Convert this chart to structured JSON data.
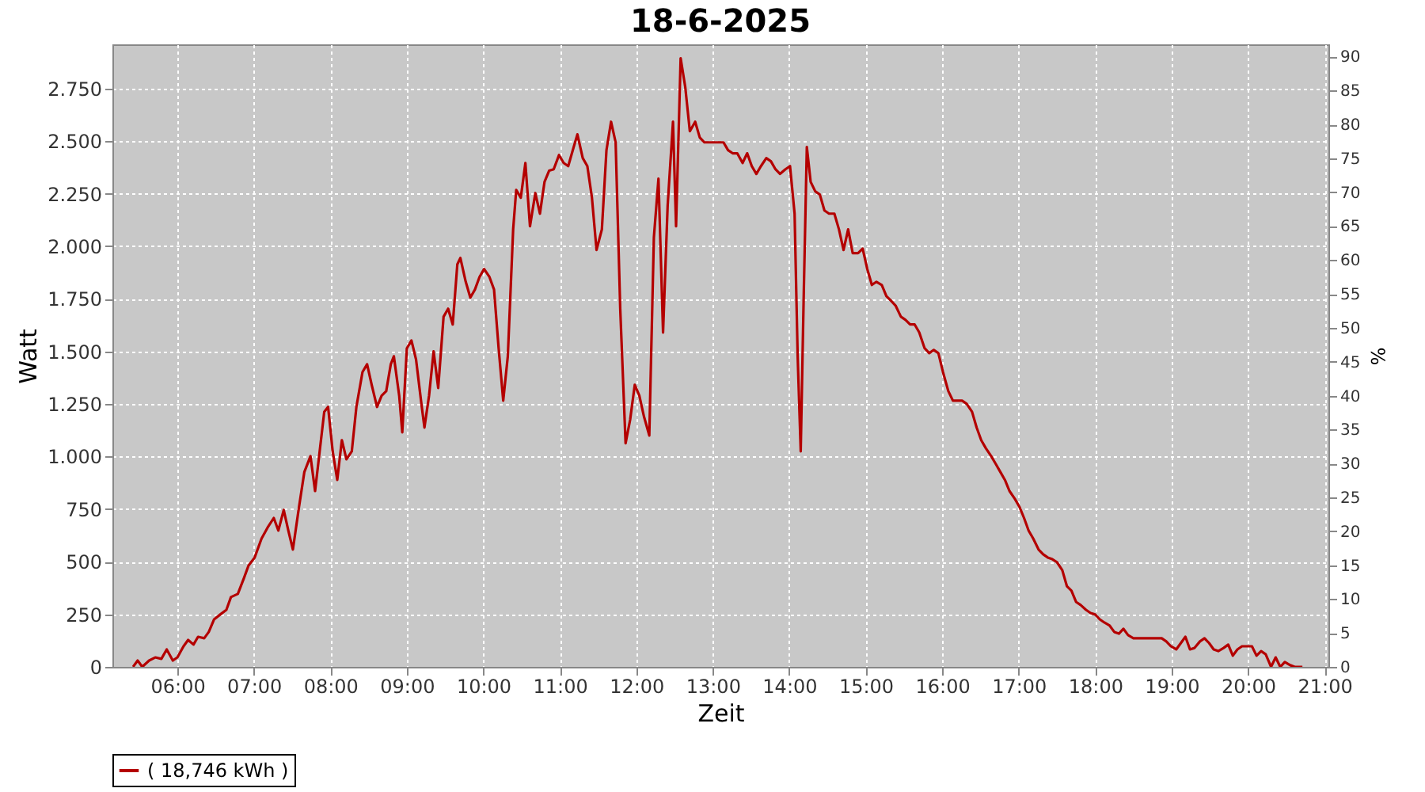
{
  "chart_data": {
    "type": "line",
    "title": "18-6-2025",
    "xlabel": "Zeit",
    "ylabel": "Watt",
    "y2label": "%",
    "xlim": [
      5.15,
      21.05
    ],
    "xticks": [
      {
        "value": 6,
        "label": "06:00"
      },
      {
        "value": 7,
        "label": "07:00"
      },
      {
        "value": 8,
        "label": "08:00"
      },
      {
        "value": 9,
        "label": "09:00"
      },
      {
        "value": 10,
        "label": "10:00"
      },
      {
        "value": 11,
        "label": "11:00"
      },
      {
        "value": 12,
        "label": "12:00"
      },
      {
        "value": 13,
        "label": "13:00"
      },
      {
        "value": 14,
        "label": "14:00"
      },
      {
        "value": 15,
        "label": "15:00"
      },
      {
        "value": 16,
        "label": "16:00"
      },
      {
        "value": 17,
        "label": "17:00"
      },
      {
        "value": 18,
        "label": "18:00"
      },
      {
        "value": 19,
        "label": "19:00"
      },
      {
        "value": 20,
        "label": "20:00"
      },
      {
        "value": 21,
        "label": "21:00"
      }
    ],
    "ylim": [
      0,
      2960
    ],
    "yticks": [
      0,
      250,
      500,
      750,
      {
        "value": 1000,
        "label": "1.000"
      },
      {
        "value": 1250,
        "label": "1.250"
      },
      {
        "value": 1500,
        "label": "1.500"
      },
      {
        "value": 1750,
        "label": "1.750"
      },
      {
        "value": 2000,
        "label": "2.000"
      },
      {
        "value": 2250,
        "label": "2.250"
      },
      {
        "value": 2500,
        "label": "2.500"
      },
      {
        "value": 2750,
        "label": "2.750"
      }
    ],
    "y2lim": [
      0,
      91.8
    ],
    "y2ticks": [
      0,
      5,
      10,
      15,
      20,
      25,
      30,
      35,
      40,
      45,
      50,
      55,
      60,
      65,
      70,
      75,
      80,
      85,
      90
    ],
    "grid": true,
    "legend": "bottom",
    "x": [
      5.42,
      5.48,
      5.54,
      5.63,
      5.71,
      5.79,
      5.86,
      5.94,
      6.0,
      6.08,
      6.14,
      6.21,
      6.27,
      6.35,
      6.41,
      6.48,
      6.56,
      6.64,
      6.7,
      6.79,
      6.87,
      6.93,
      7.01,
      7.1,
      7.18,
      7.26,
      7.32,
      7.39,
      7.45,
      7.51,
      7.59,
      7.66,
      7.74,
      7.8,
      7.86,
      7.92,
      7.97,
      8.03,
      8.09,
      8.15,
      8.21,
      8.28,
      8.34,
      8.42,
      8.48,
      8.54,
      8.61,
      8.67,
      8.73,
      8.79,
      8.83,
      8.9,
      8.94,
      9.0,
      9.06,
      9.12,
      9.19,
      9.23,
      9.29,
      9.35,
      9.41,
      9.48,
      9.54,
      9.6,
      9.66,
      9.7,
      9.77,
      9.83,
      9.89,
      9.95,
      10.01,
      10.08,
      10.14,
      10.2,
      10.26,
      10.32,
      10.39,
      10.43,
      10.49,
      10.55,
      10.61,
      10.68,
      10.74,
      10.8,
      10.86,
      10.92,
      10.99,
      11.05,
      11.11,
      11.17,
      11.23,
      11.3,
      11.36,
      11.42,
      11.48,
      11.55,
      11.61,
      11.67,
      11.73,
      11.79,
      11.86,
      11.92,
      11.98,
      12.04,
      12.1,
      12.17,
      12.23,
      12.29,
      12.35,
      12.41,
      12.48,
      12.52,
      12.58,
      12.64,
      12.7,
      12.77,
      12.83,
      12.89,
      12.95,
      13.01,
      13.08,
      13.14,
      13.2,
      13.26,
      13.32,
      13.39,
      13.45,
      13.51,
      13.57,
      13.63,
      13.7,
      13.76,
      13.82,
      13.88,
      13.95,
      14.01,
      14.07,
      14.11,
      14.15,
      14.19,
      14.23,
      14.28,
      14.34,
      14.4,
      14.46,
      14.52,
      14.59,
      14.65,
      14.71,
      14.77,
      14.83,
      14.9,
      14.96,
      15.02,
      15.08,
      15.14,
      15.21,
      15.27,
      15.33,
      15.39,
      15.46,
      15.52,
      15.58,
      15.64,
      15.7,
      15.77,
      15.83,
      15.89,
      15.95,
      16.01,
      16.08,
      16.14,
      16.2,
      16.26,
      16.32,
      16.39,
      16.45,
      16.51,
      16.57,
      16.64,
      16.7,
      16.76,
      16.82,
      16.88,
      16.95,
      17.01,
      17.07,
      17.13,
      17.19,
      17.26,
      17.32,
      17.38,
      17.44,
      17.5,
      17.57,
      17.63,
      17.69,
      17.75,
      17.81,
      17.88,
      17.94,
      18.0,
      18.06,
      18.12,
      18.19,
      18.25,
      18.31,
      18.37,
      18.43,
      18.5,
      18.56,
      18.62,
      18.68,
      18.74,
      18.81,
      18.87,
      18.93,
      18.99,
      19.06,
      19.12,
      19.18,
      19.24,
      19.3,
      19.37,
      19.43,
      19.49,
      19.55,
      19.61,
      19.68,
      19.74,
      19.8,
      19.86,
      19.92,
      19.99,
      20.05,
      20.11,
      20.17,
      20.23,
      20.3,
      20.36,
      20.42,
      20.48,
      20.55,
      20.61,
      20.71
    ],
    "series": [
      {
        "name": "( 18,746 kWh )",
        "color": "#b40000",
        "values": [
          0,
          30,
          0,
          30,
          45,
          38,
          83,
          30,
          45,
          98,
          128,
          106,
          143,
          136,
          166,
          226,
          249,
          271,
          332,
          347,
          422,
          482,
          520,
          610,
          663,
          708,
          648,
          746,
          648,
          558,
          761,
          927,
          1002,
          836,
          1025,
          1213,
          1236,
          1025,
          889,
          1078,
          987,
          1025,
          1236,
          1402,
          1439,
          1341,
          1236,
          1289,
          1311,
          1439,
          1477,
          1289,
          1115,
          1515,
          1552,
          1462,
          1251,
          1138,
          1289,
          1500,
          1326,
          1665,
          1703,
          1628,
          1914,
          1944,
          1831,
          1756,
          1794,
          1854,
          1892,
          1854,
          1794,
          1515,
          1266,
          1477,
          2080,
          2268,
          2231,
          2396,
          2095,
          2253,
          2155,
          2306,
          2359,
          2366,
          2434,
          2396,
          2381,
          2457,
          2532,
          2419,
          2381,
          2231,
          1982,
          2080,
          2457,
          2592,
          2494,
          1703,
          1063,
          1176,
          1341,
          1289,
          1191,
          1100,
          2042,
          2321,
          1590,
          2193,
          2592,
          2095,
          2894,
          2758,
          2547,
          2592,
          2517,
          2494,
          2494,
          2494,
          2494,
          2494,
          2457,
          2442,
          2442,
          2396,
          2442,
          2381,
          2344,
          2381,
          2419,
          2404,
          2366,
          2344,
          2366,
          2381,
          2155,
          1477,
          1025,
          1779,
          2472,
          2306,
          2261,
          2246,
          2170,
          2155,
          2155,
          2080,
          1982,
          2080,
          1967,
          1967,
          1989,
          1892,
          1816,
          1831,
          1816,
          1763,
          1741,
          1718,
          1665,
          1650,
          1628,
          1628,
          1590,
          1515,
          1492,
          1507,
          1492,
          1402,
          1311,
          1266,
          1266,
          1266,
          1251,
          1213,
          1138,
          1078,
          1040,
          1002,
          965,
          927,
          889,
          836,
          799,
          761,
          708,
          648,
          610,
          558,
          535,
          520,
          512,
          498,
          460,
          384,
          362,
          309,
          294,
          271,
          256,
          249,
          226,
          211,
          196,
          166,
          158,
          181,
          151,
          136,
          136,
          136,
          136,
          136,
          136,
          136,
          121,
          98,
          83,
          113,
          143,
          83,
          90,
          121,
          136,
          113,
          83,
          75,
          90,
          106,
          53,
          83,
          98,
          98,
          98,
          53,
          75,
          60,
          0,
          45,
          0,
          23,
          8,
          0,
          0
        ]
      }
    ]
  }
}
